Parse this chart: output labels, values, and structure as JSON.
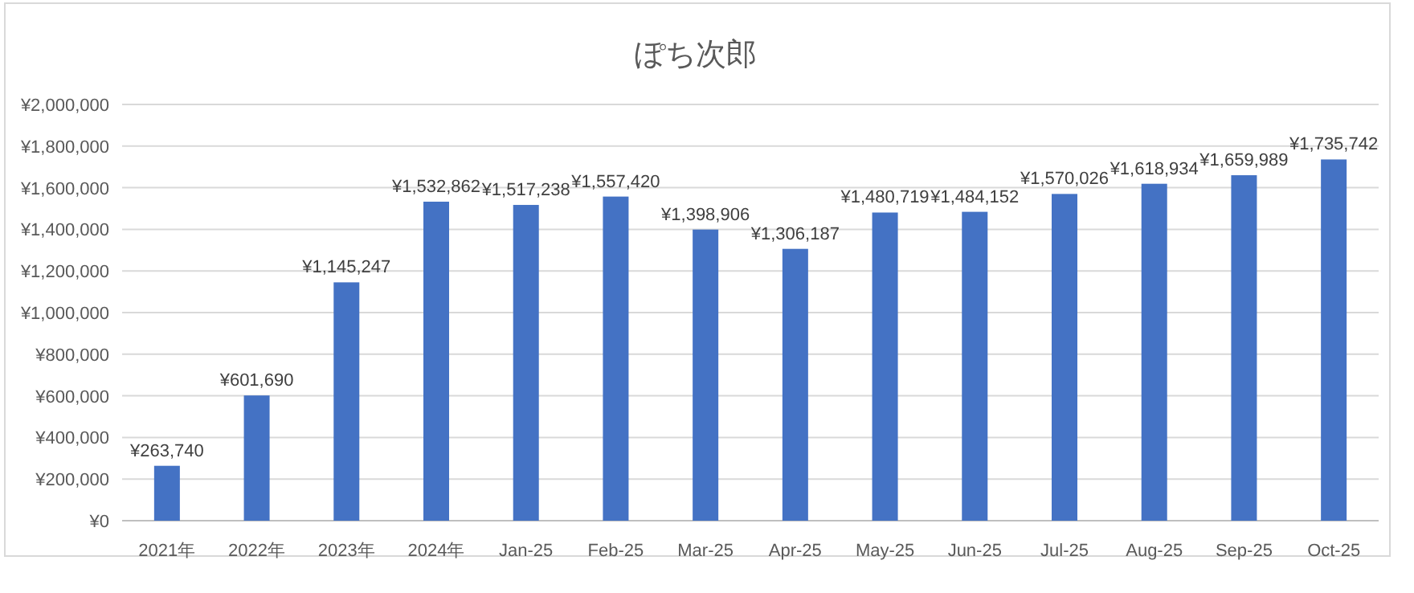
{
  "chart_data": {
    "type": "bar",
    "title": "ぽち次郎",
    "categories": [
      "2021年",
      "2022年",
      "2023年",
      "2024年",
      "Jan-25",
      "Feb-25",
      "Mar-25",
      "Apr-25",
      "May-25",
      "Jun-25",
      "Jul-25",
      "Aug-25",
      "Sep-25",
      "Oct-25"
    ],
    "values": [
      263740,
      601690,
      1145247,
      1532862,
      1517238,
      1557420,
      1398906,
      1306187,
      1480719,
      1484152,
      1570026,
      1618934,
      1659989,
      1735742
    ],
    "value_labels": [
      "¥263,740",
      "¥601,690",
      "¥1,145,247",
      "¥1,532,862",
      "¥1,517,238",
      "¥1,557,420",
      "¥1,398,906",
      "¥1,306,187",
      "¥1,480,719",
      "¥1,484,152",
      "¥1,570,026",
      "¥1,618,934",
      "¥1,659,989",
      "¥1,735,742"
    ],
    "color": "#4472c4",
    "ylim": [
      0,
      2000000
    ],
    "yticks": [
      {
        "value": 0,
        "label": "¥0"
      },
      {
        "value": 200000,
        "label": "¥200,000"
      },
      {
        "value": 400000,
        "label": "¥400,000"
      },
      {
        "value": 600000,
        "label": "¥600,000"
      },
      {
        "value": 800000,
        "label": "¥800,000"
      },
      {
        "value": 1000000,
        "label": "¥1,000,000"
      },
      {
        "value": 1200000,
        "label": "¥1,200,000"
      },
      {
        "value": 1400000,
        "label": "¥1,400,000"
      },
      {
        "value": 1600000,
        "label": "¥1,600,000"
      },
      {
        "value": 1800000,
        "label": "¥1,800,000"
      },
      {
        "value": 2000000,
        "label": "¥2,000,000"
      }
    ],
    "grid": "y"
  }
}
